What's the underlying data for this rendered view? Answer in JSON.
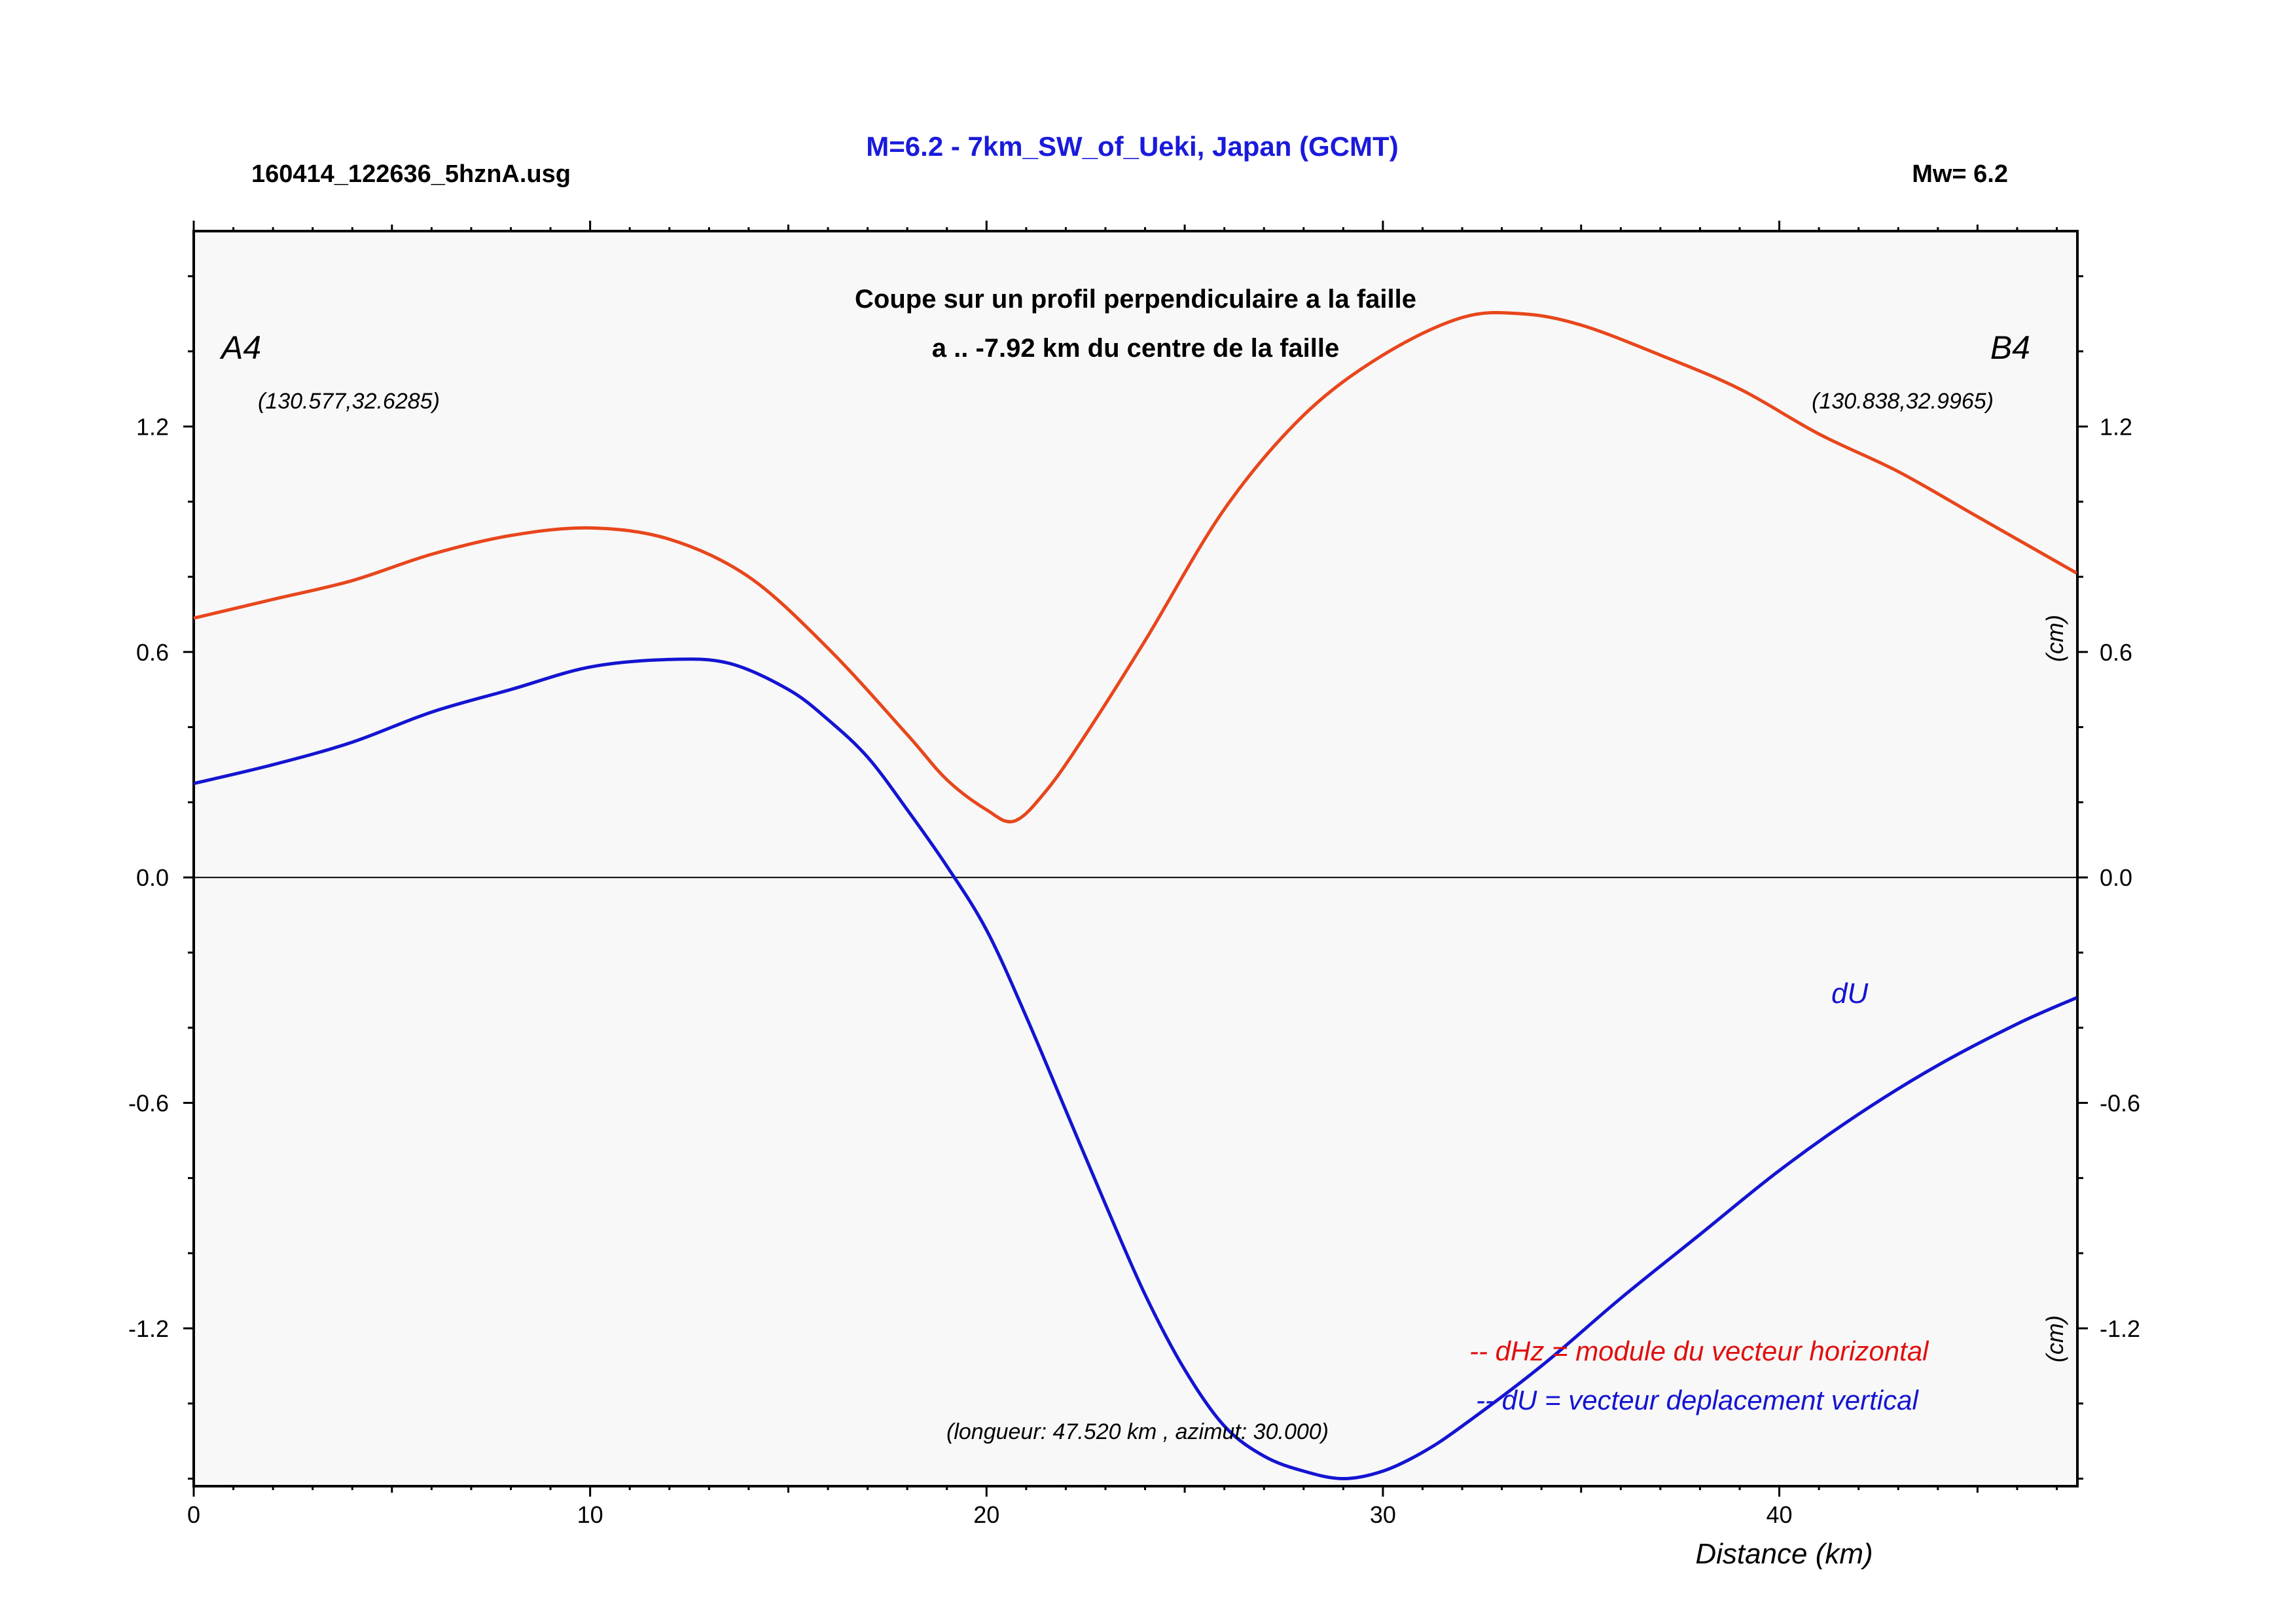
{
  "header": {
    "file_name": "160414_122636_5hznA.usg",
    "title": "M=6.2 - 7km_SW_of_Ueki, Japan (GCMT)",
    "magnitude": "Mw= 6.2"
  },
  "colors": {
    "title": "#1a1adc",
    "dHz": "#e8461c",
    "dU": "#1414d2",
    "plot_background": "#f8f8f8",
    "legend_dHz": "#e01010",
    "legend_dU": "#1414d2"
  },
  "chart_data": {
    "type": "line",
    "subtitle_line1": "Coupe sur un profil perpendiculaire a la faille",
    "subtitle_line2": "a .. -7.92 km du centre de la faille",
    "xlabel": "Distance (km)",
    "ylabel": "(cm)",
    "xlim": [
      0,
      47.52
    ],
    "ylim": [
      -1.62,
      1.72
    ],
    "x_ticks": [
      0,
      10,
      20,
      30,
      40
    ],
    "x_tick_labels": [
      "0",
      "10",
      "20",
      "30",
      "40"
    ],
    "y_ticks": [
      -1.2,
      -0.6,
      0.0,
      0.6,
      1.2
    ],
    "y_tick_labels": [
      "-1.2",
      "-0.6",
      "0.0",
      "0.6",
      "1.2"
    ],
    "zero_line": true,
    "grid": false,
    "endpoints": {
      "A": {
        "label": "A4",
        "coords": "(130.577,32.6285)"
      },
      "B": {
        "label": "B4",
        "coords": "(130.838,32.9965)"
      }
    },
    "profile_info": "(longueur: 47.520 km , azimut: 30.000)",
    "series_label_dU": "dU",
    "legend": [
      {
        "text": "-- dHz = module du vecteur horizontal"
      },
      {
        "text": "-- dU =  vecteur deplacement vertical"
      }
    ],
    "series": [
      {
        "key": "dHz",
        "x": [
          0,
          2,
          4,
          6,
          8,
          10,
          12,
          14,
          16,
          18,
          19,
          20,
          20.7,
          21.5,
          22.5,
          24,
          26,
          28,
          30,
          32,
          33.5,
          35,
          37,
          39,
          41,
          43,
          45,
          47.5
        ],
        "y": [
          0.69,
          0.74,
          0.79,
          0.86,
          0.91,
          0.93,
          0.9,
          0.8,
          0.61,
          0.38,
          0.26,
          0.18,
          0.15,
          0.23,
          0.38,
          0.63,
          0.98,
          1.23,
          1.39,
          1.49,
          1.5,
          1.47,
          1.39,
          1.3,
          1.18,
          1.08,
          0.96,
          0.81
        ]
      },
      {
        "key": "dU",
        "x": [
          0,
          2,
          4,
          6,
          8,
          10,
          12,
          13.5,
          15,
          16,
          17,
          18,
          19,
          20,
          21,
          22,
          23,
          24,
          25,
          26,
          27,
          28,
          29,
          30,
          31,
          32,
          34,
          36,
          38,
          40,
          42,
          44,
          46,
          47.5
        ],
        "y": [
          0.25,
          0.3,
          0.36,
          0.44,
          0.5,
          0.56,
          0.58,
          0.57,
          0.5,
          0.42,
          0.32,
          0.18,
          0.03,
          -0.14,
          -0.37,
          -0.62,
          -0.87,
          -1.11,
          -1.31,
          -1.46,
          -1.54,
          -1.58,
          -1.6,
          -1.58,
          -1.53,
          -1.46,
          -1.3,
          -1.12,
          -0.95,
          -0.78,
          -0.63,
          -0.5,
          -0.39,
          -0.32
        ]
      }
    ]
  }
}
